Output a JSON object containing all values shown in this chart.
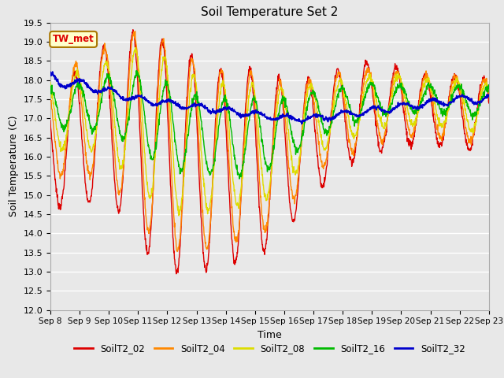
{
  "title": "Soil Temperature Set 2",
  "xlabel": "Time",
  "ylabel": "Soil Temperature (C)",
  "ylim": [
    12.0,
    19.5
  ],
  "yticks": [
    12.0,
    12.5,
    13.0,
    13.5,
    14.0,
    14.5,
    15.0,
    15.5,
    16.0,
    16.5,
    17.0,
    17.5,
    18.0,
    18.5,
    19.0,
    19.5
  ],
  "xtick_labels": [
    "Sep 8",
    "Sep 9",
    "Sep 10",
    "Sep 11",
    "Sep 12",
    "Sep 13",
    "Sep 14",
    "Sep 15",
    "Sep 16",
    "Sep 17",
    "Sep 18",
    "Sep 19",
    "Sep 20",
    "Sep 21",
    "Sep 22",
    "Sep 23"
  ],
  "series_colors": {
    "SoilT2_02": "#dd0000",
    "SoilT2_04": "#ff8800",
    "SoilT2_08": "#dddd00",
    "SoilT2_16": "#00bb00",
    "SoilT2_32": "#0000cc"
  },
  "annotation_text": "TW_met",
  "annotation_bg": "#ffffcc",
  "annotation_border": "#aa7700",
  "plot_bg": "#e8e8e8",
  "fig_bg": "#e8e8e8",
  "grid_color": "#ffffff",
  "num_days": 15,
  "samples_per_day": 96
}
